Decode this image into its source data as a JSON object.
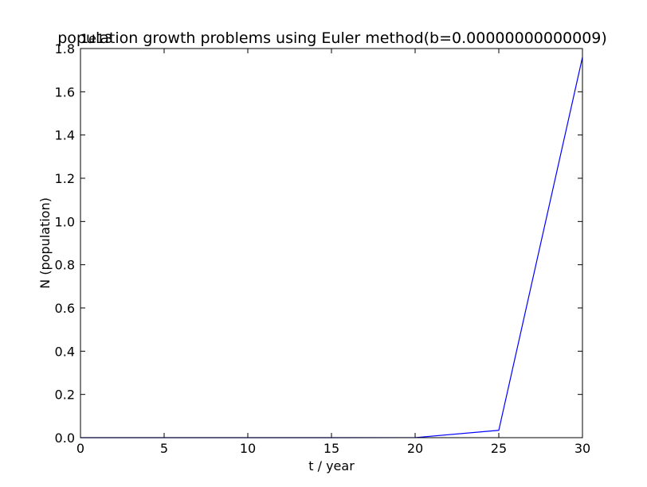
{
  "chart_data": {
    "type": "line",
    "title": "population growth problems using Euler method(b=0.00000000000009)",
    "xlabel": "t / year",
    "ylabel": "N (population)",
    "offset_label": "1e13",
    "xlim": [
      0,
      30
    ],
    "ylim": [
      0,
      1.8
    ],
    "x_ticks": [
      "0",
      "5",
      "10",
      "15",
      "20",
      "25",
      "30"
    ],
    "y_ticks": [
      "0.0",
      "0.2",
      "0.4",
      "0.6",
      "0.8",
      "1.0",
      "1.2",
      "1.4",
      "1.6",
      "1.8"
    ],
    "grid": false,
    "series": [
      {
        "color": "#0000ff",
        "x": [
          0,
          5,
          10,
          15,
          20,
          25,
          30
        ],
        "y": [
          0,
          0,
          0,
          0,
          0.0002,
          0.034,
          1.76
        ]
      }
    ]
  }
}
